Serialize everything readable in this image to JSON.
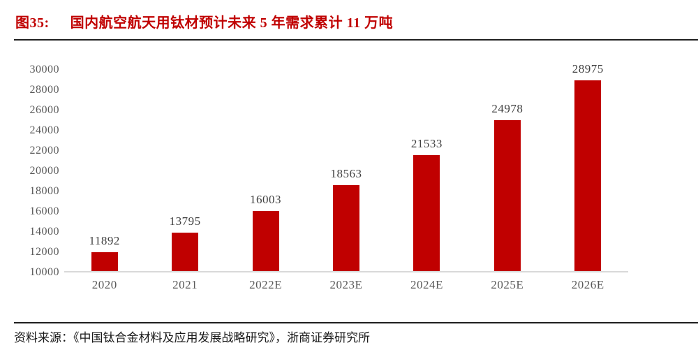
{
  "figure": {
    "label": "图35:",
    "title": "国内航空航天用钛材预计未来 5 年需求累计 11 万吨",
    "source": "资料来源：《中国钛合金材料及应用发展战略研究》，浙商证券研究所"
  },
  "colors": {
    "title_text": "#c00000",
    "bar": "#c00000",
    "axis_line": "#d9d9d9",
    "tick_text": "#595959",
    "value_text": "#404040",
    "rule": "#1f1f1f"
  },
  "chart_data": {
    "type": "bar",
    "title": "国内航空航天用钛材预计未来 5 年需求累计 11 万吨",
    "categories": [
      "2020",
      "2021",
      "2022E",
      "2023E",
      "2024E",
      "2025E",
      "2026E"
    ],
    "values": [
      11892,
      13795,
      16003,
      18563,
      21533,
      24978,
      28975
    ],
    "xlabel": "",
    "ylabel": "",
    "ylim": [
      10000,
      30000
    ],
    "ytick_step": 2000,
    "yticks": [
      10000,
      12000,
      14000,
      16000,
      18000,
      20000,
      22000,
      24000,
      26000,
      28000,
      30000
    ],
    "grid": false,
    "legend": null,
    "data_labels": true,
    "bar_color": "#c00000"
  }
}
